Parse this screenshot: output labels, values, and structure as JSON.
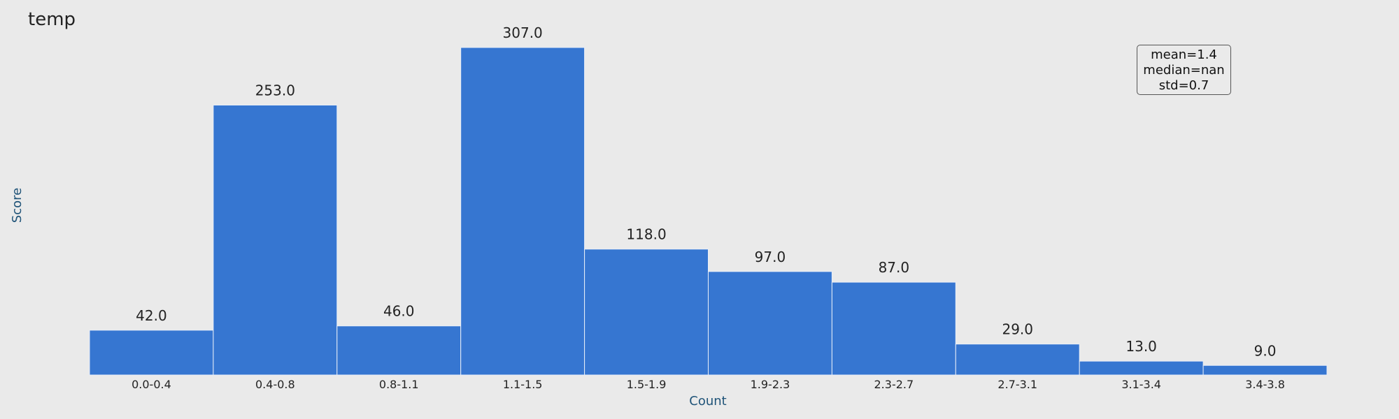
{
  "chart_data": {
    "type": "bar",
    "title": "temp",
    "xlabel": "Count",
    "ylabel": "Score",
    "categories": [
      "0.0-0.4",
      "0.4-0.8",
      "0.8-1.1",
      "1.1-1.5",
      "1.5-1.9",
      "1.9-2.3",
      "2.3-2.7",
      "2.7-3.1",
      "3.1-3.4",
      "3.4-3.8"
    ],
    "values": [
      42.0,
      253.0,
      46.0,
      307.0,
      118.0,
      97.0,
      87.0,
      29.0,
      13.0,
      9.0
    ],
    "value_labels": [
      "42.0",
      "253.0",
      "46.0",
      "307.0",
      "118.0",
      "97.0",
      "87.0",
      "29.0",
      "13.0",
      "9.0"
    ],
    "ylim": [
      0,
      307
    ],
    "grid": false,
    "stats": [
      "mean=1.4",
      "median=nan",
      "std=0.7"
    ],
    "stats_placement": "top-right",
    "colors": {
      "bar": "#3676d1",
      "bar_edge": "#e8eef8",
      "background": "#eaeaea",
      "axis_label": "#1f5378",
      "text": "#222222"
    }
  }
}
